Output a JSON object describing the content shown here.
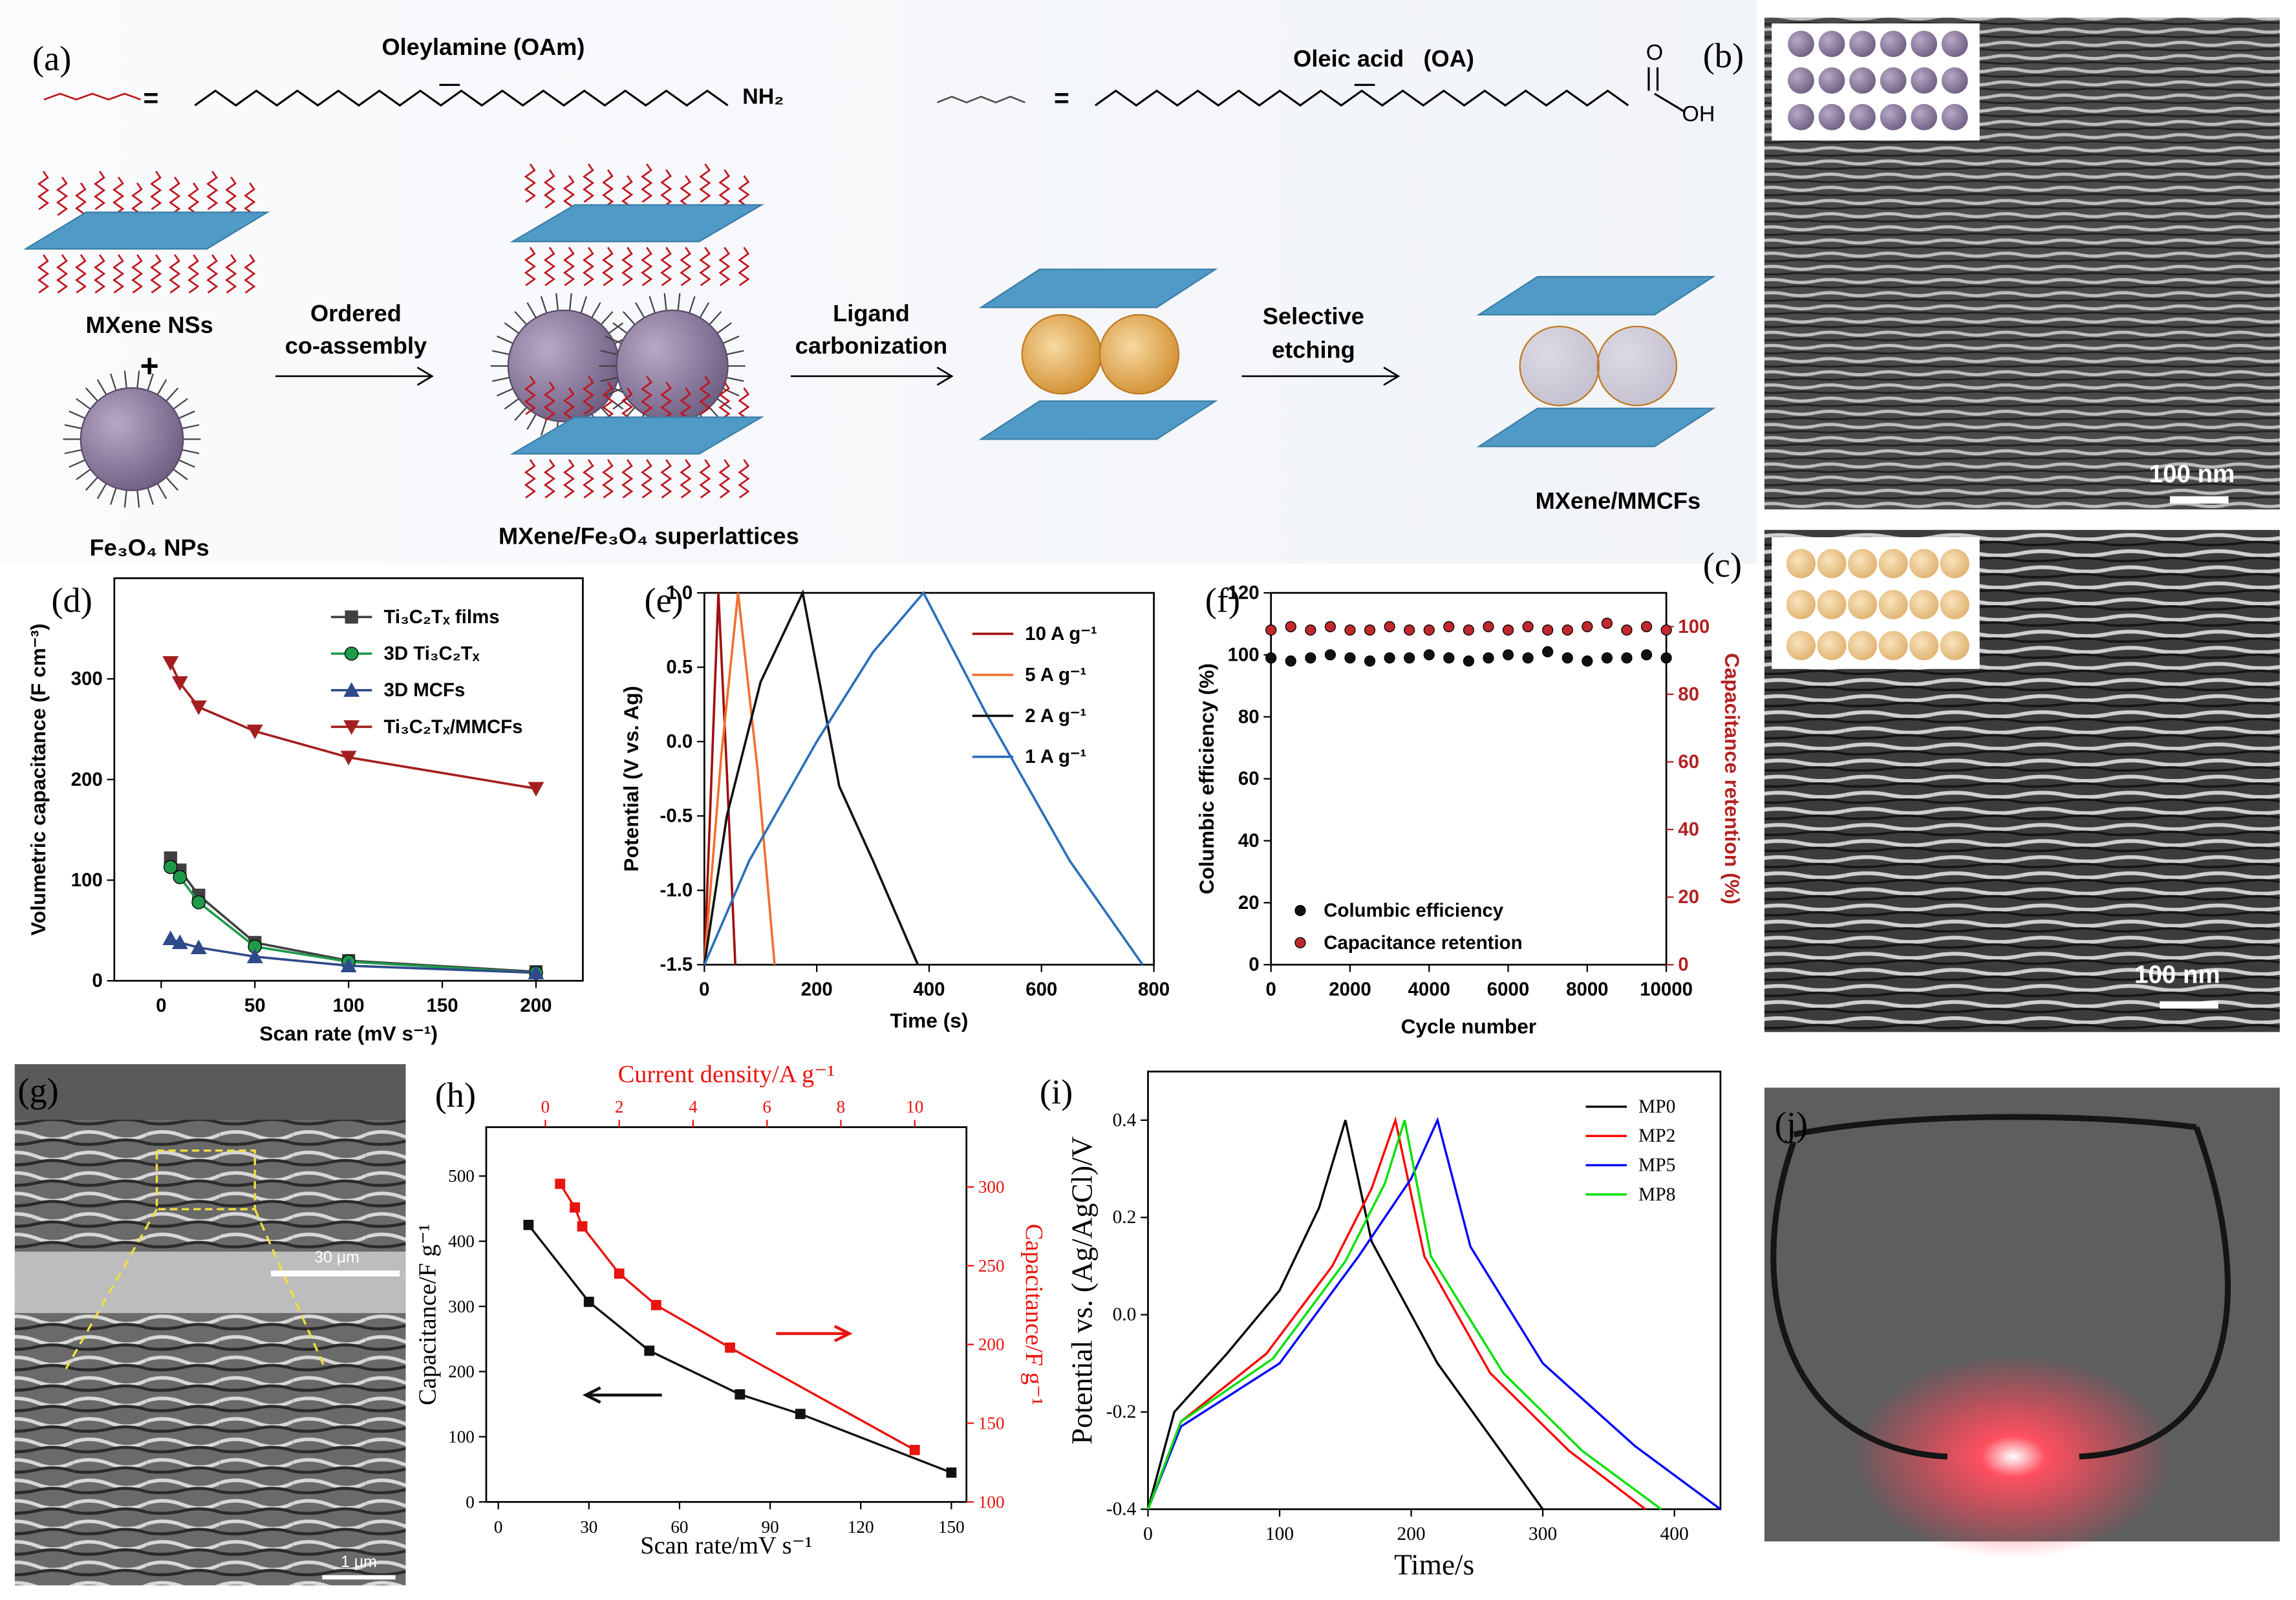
{
  "figure": {
    "panel_labels": [
      "(a)",
      "(b)",
      "(c)",
      "(d)",
      "(e)",
      "(f)",
      "(g)",
      "(h)",
      "(i)",
      "(j)"
    ],
    "schematic": {
      "oam_label": "Oleylamine (OAm)",
      "nh2": "NH₂",
      "oa_label": "Oleic acid   (OA)",
      "oh": "OH",
      "o": "O",
      "equals": [
        "=",
        "="
      ],
      "mxene": "MXene NSs",
      "plus": "+",
      "fe3o4": "Fe₃O₄ NPs",
      "step1": [
        "Ordered",
        "co-assembly"
      ],
      "step2": [
        "Ligand",
        "carbonization"
      ],
      "step3": [
        "Selective",
        "etching"
      ],
      "superlattice": "MXene/Fe₃O₄ superlattices",
      "product": "MXene/MMCFs"
    },
    "scale_bars": {
      "b": "100 nm",
      "c": "100 nm",
      "g_top": "30 μm",
      "g_bottom": "1 μm"
    }
  },
  "chart_data": [
    {
      "type": "line",
      "xlabel": "Scan rate (mV s⁻¹)",
      "ylabel": "Volumetric capacitance (F cm⁻³)",
      "x": [
        5,
        10,
        20,
        50,
        100,
        200
      ],
      "xlim": [
        -25,
        225
      ],
      "xticks": [
        0,
        50,
        100,
        150,
        200
      ],
      "ylim": [
        0,
        400
      ],
      "yticks": [
        0,
        100,
        200,
        300
      ],
      "legend": "upper right",
      "series": [
        {
          "name": "Ti₃C₂Tₓ films",
          "color": "#404040",
          "marker": "square",
          "values": [
            122,
            110,
            85,
            38,
            20,
            9
          ]
        },
        {
          "name": "3D Ti₃C₂Tₓ",
          "color": "#1e9a4a",
          "marker": "circle",
          "values": [
            113,
            103,
            78,
            34,
            19,
            8
          ]
        },
        {
          "name": "3D MCFs",
          "color": "#2e4a8a",
          "marker": "triangle",
          "values": [
            42,
            38,
            33,
            24,
            15,
            8
          ]
        },
        {
          "name": "Ti₃C₂Tₓ/MMCFs",
          "color": "#a31f1f",
          "marker": "triangle-down",
          "values": [
            316,
            296,
            272,
            248,
            222,
            191
          ]
        }
      ]
    },
    {
      "type": "line",
      "xlabel": "Time (s)",
      "ylabel": "Potential (V vs. Ag)",
      "xlim": [
        0,
        800
      ],
      "xticks": [
        0,
        200,
        400,
        600,
        800
      ],
      "ylim": [
        -1.5,
        1.0
      ],
      "yticks": [
        {
          "value": 1,
          "label": "1.0"
        },
        0.5,
        {
          "value": 0,
          "label": "0.0"
        },
        -0.5,
        {
          "value": -1,
          "label": "-1.0"
        },
        -1.5
      ],
      "legend": "upper right",
      "series": [
        {
          "name": "10 A g⁻¹",
          "color": "#a01010",
          "x": [
            0,
            12,
            25,
            40,
            55
          ],
          "values": [
            -1.5,
            -0.3,
            1.0,
            -0.2,
            -1.5
          ]
        },
        {
          "name": "5 A g⁻¹",
          "color": "#f07030",
          "x": [
            0,
            30,
            60,
            95,
            125
          ],
          "values": [
            -1.5,
            -0.1,
            1.0,
            -0.2,
            -1.5
          ]
        },
        {
          "name": "2 A g⁻¹",
          "color": "#111111",
          "x": [
            0,
            40,
            100,
            175,
            240,
            300,
            380
          ],
          "values": [
            -1.5,
            -0.5,
            0.4,
            1.0,
            -0.3,
            -0.8,
            -1.5
          ]
        },
        {
          "name": "1 A g⁻¹",
          "color": "#2a6ebb",
          "x": [
            0,
            80,
            200,
            300,
            390,
            500,
            650,
            780
          ],
          "values": [
            -1.5,
            -0.8,
            0.0,
            0.6,
            1.0,
            0.2,
            -0.8,
            -1.5
          ]
        }
      ]
    },
    {
      "type": "scatter",
      "xlabel": "Cycle number",
      "ylabel": "Columbic efficiency (%)",
      "y2label": "Capacitance retention (%)",
      "y2color": "#b22222",
      "x": [
        0,
        500,
        1000,
        1500,
        2000,
        2500,
        3000,
        3500,
        4000,
        4500,
        5000,
        5500,
        6000,
        6500,
        7000,
        7500,
        8000,
        8500,
        9000,
        9500,
        10000
      ],
      "xlim": [
        0,
        10000
      ],
      "xticks": [
        0,
        2000,
        4000,
        6000,
        8000,
        10000
      ],
      "ylim": [
        0,
        120
      ],
      "yticks": [
        0,
        20,
        40,
        60,
        80,
        100,
        120
      ],
      "y2lim": [
        0,
        110
      ],
      "y2ticks": [
        0,
        20,
        40,
        60,
        80,
        100
      ],
      "legend": "lower left",
      "series": [
        {
          "name": "Columbic efficiency",
          "color": "#111111",
          "values": [
            99,
            98,
            99,
            100,
            99,
            98,
            99,
            99,
            100,
            99,
            98,
            99,
            100,
            99,
            101,
            99,
            98,
            99,
            99,
            100,
            99
          ]
        },
        {
          "name": "Capacitance retention",
          "color": "#c0282d",
          "axis": "y2",
          "values": [
            99,
            100,
            99,
            100,
            99,
            99,
            100,
            99,
            99,
            100,
            99,
            100,
            99,
            100,
            99,
            99,
            100,
            101,
            99,
            100,
            99
          ]
        }
      ]
    },
    {
      "type": "line",
      "xlabel": "Scan rate/mV s⁻¹",
      "x2label": "Current density/A g⁻¹",
      "ylabel": "Capacitance/F g⁻¹",
      "y2label": "Capacitance/F g⁻¹",
      "y2color": "#e8140f",
      "x2color": "#e8140f",
      "x": [
        10,
        30,
        50,
        80,
        100,
        150
      ],
      "xlim": [
        -4,
        155
      ],
      "xticks": [
        0,
        30,
        60,
        90,
        120,
        150
      ],
      "x2lim": [
        -1.6,
        11.4
      ],
      "x2ticks": [
        0,
        2,
        4,
        6,
        8,
        10
      ],
      "ylim": [
        0,
        575
      ],
      "yticks": [
        0,
        100,
        200,
        300,
        400,
        500
      ],
      "y2lim": [
        100,
        338
      ],
      "y2ticks": [
        100,
        150,
        200,
        250,
        300
      ],
      "series": [
        {
          "color": "#111111",
          "marker": "square",
          "values": [
            425,
            307,
            232,
            165,
            135,
            45
          ]
        },
        {
          "color": "#e8140f",
          "marker": "square",
          "axis": "y2",
          "xaxis": "x2",
          "x": [
            0.4,
            0.8,
            1,
            2,
            3,
            5,
            10
          ],
          "values": [
            302,
            287,
            275,
            245,
            225,
            198,
            133
          ]
        }
      ]
    },
    {
      "type": "line",
      "xlabel": "Time/s",
      "ylabel": "Potential vs. (Ag/AgCl)/V",
      "xlim": [
        0,
        435
      ],
      "xticks": [
        0,
        100,
        200,
        300,
        400
      ],
      "ylim": [
        -0.4,
        0.5
      ],
      "yticks": [
        -0.4,
        -0.2,
        {
          "value": 0,
          "label": "0.0"
        },
        0.2,
        0.4
      ],
      "legend": "upper right",
      "series": [
        {
          "name": "MP0",
          "color": "#000000",
          "x": [
            0,
            20,
            60,
            100,
            130,
            150,
            170,
            220,
            260,
            300
          ],
          "values": [
            -0.4,
            -0.2,
            -0.08,
            0.05,
            0.22,
            0.4,
            0.15,
            -0.1,
            -0.25,
            -0.4
          ]
        },
        {
          "name": "MP2",
          "color": "#ff0000",
          "x": [
            0,
            25,
            90,
            140,
            170,
            188,
            210,
            260,
            320,
            378
          ],
          "values": [
            -0.4,
            -0.22,
            -0.08,
            0.1,
            0.26,
            0.4,
            0.12,
            -0.12,
            -0.28,
            -0.4
          ]
        },
        {
          "name": "MP5",
          "color": "#0000ff",
          "x": [
            0,
            25,
            100,
            160,
            200,
            220,
            245,
            300,
            370,
            435
          ],
          "values": [
            -0.4,
            -0.23,
            -0.1,
            0.12,
            0.28,
            0.4,
            0.14,
            -0.1,
            -0.27,
            -0.4
          ]
        },
        {
          "name": "MP8",
          "color": "#00e000",
          "x": [
            0,
            25,
            95,
            150,
            180,
            195,
            215,
            270,
            330,
            390
          ],
          "values": [
            -0.4,
            -0.22,
            -0.09,
            0.11,
            0.27,
            0.4,
            0.12,
            -0.12,
            -0.28,
            -0.4
          ]
        }
      ]
    }
  ]
}
